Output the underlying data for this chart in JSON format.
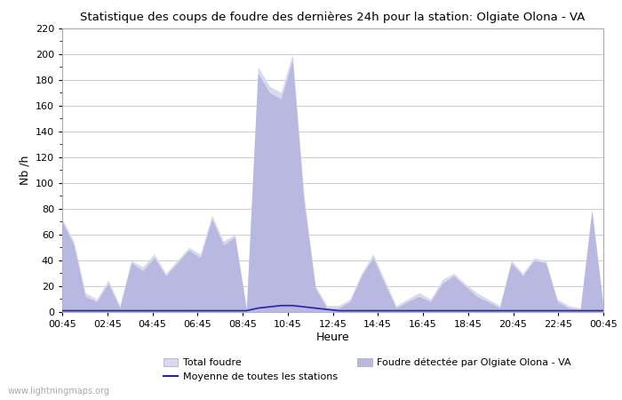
{
  "title": "Statistique des coups de foudre des dernières 24h pour la station: Olgiate Olona - VA",
  "xlabel": "Heure",
  "ylabel": "Nb /h",
  "ylim": [
    0,
    220
  ],
  "yticks": [
    0,
    20,
    40,
    60,
    80,
    100,
    120,
    140,
    160,
    180,
    200,
    220
  ],
  "xtick_labels": [
    "00:45",
    "02:45",
    "04:45",
    "06:45",
    "08:45",
    "10:45",
    "12:45",
    "14:45",
    "16:45",
    "18:45",
    "20:45",
    "22:45",
    "00:45"
  ],
  "background_color": "#ffffff",
  "grid_color": "#cccccc",
  "color_total": "#d8d8f0",
  "color_detected": "#b8b8e0",
  "color_mean": "#2222bb",
  "watermark": "www.lightningmaps.org",
  "legend_labels": [
    "Total foudre",
    "Moyenne de toutes les stations",
    "Foudre détectée par Olgiate Olona - VA"
  ],
  "total_foudre": [
    72,
    55,
    15,
    10,
    25,
    5,
    40,
    35,
    45,
    30,
    40,
    50,
    45,
    75,
    55,
    60,
    3,
    190,
    175,
    170,
    200,
    90,
    20,
    5,
    5,
    10,
    30,
    45,
    25,
    5,
    10,
    15,
    10,
    25,
    30,
    22,
    15,
    10,
    5,
    40,
    30,
    42,
    40,
    10,
    5,
    3,
    80,
    5
  ],
  "detected": [
    70,
    52,
    12,
    8,
    22,
    3,
    38,
    32,
    42,
    28,
    38,
    48,
    42,
    72,
    52,
    58,
    2,
    185,
    170,
    165,
    195,
    85,
    18,
    3,
    3,
    8,
    28,
    42,
    22,
    3,
    8,
    12,
    8,
    22,
    28,
    20,
    12,
    8,
    3,
    38,
    28,
    40,
    38,
    8,
    3,
    2,
    78,
    3
  ],
  "mean": [
    1,
    1,
    1,
    1,
    1,
    1,
    1,
    1,
    1,
    1,
    1,
    1,
    1,
    1,
    1,
    1,
    1,
    3,
    4,
    5,
    5,
    4,
    3,
    2,
    1,
    1,
    1,
    1,
    1,
    1,
    1,
    1,
    1,
    1,
    1,
    1,
    1,
    1,
    1,
    1,
    1,
    1,
    1,
    1,
    1,
    1,
    1,
    1
  ]
}
